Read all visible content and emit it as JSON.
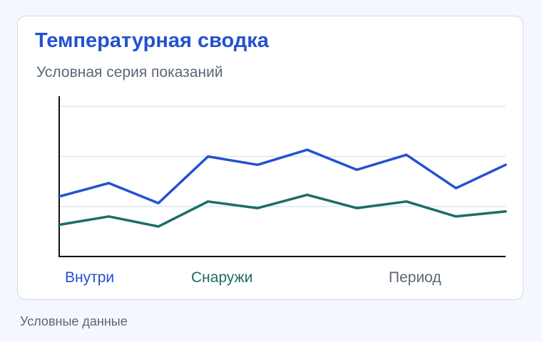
{
  "chart_data": {
    "type": "line",
    "title": "Температурная сводка",
    "subtitle": "Условная серия показаний",
    "xlabel": "Период",
    "ylabel": "",
    "x": [
      1,
      2,
      3,
      4,
      5,
      6,
      7,
      8,
      9,
      10
    ],
    "ylim": [
      0,
      100
    ],
    "grid": true,
    "legend_placement": "bottom-left",
    "series": [
      {
        "name": "Внутри",
        "color": "#2352cf",
        "values": [
          36,
          44,
          32,
          60,
          55,
          64,
          52,
          61,
          41,
          55
        ]
      },
      {
        "name": "Снаружи",
        "color": "#1c6e63",
        "values": [
          19,
          24,
          18,
          33,
          29,
          37,
          29,
          33,
          24,
          27
        ]
      }
    ]
  },
  "footer": {
    "note": "Условные данные"
  }
}
